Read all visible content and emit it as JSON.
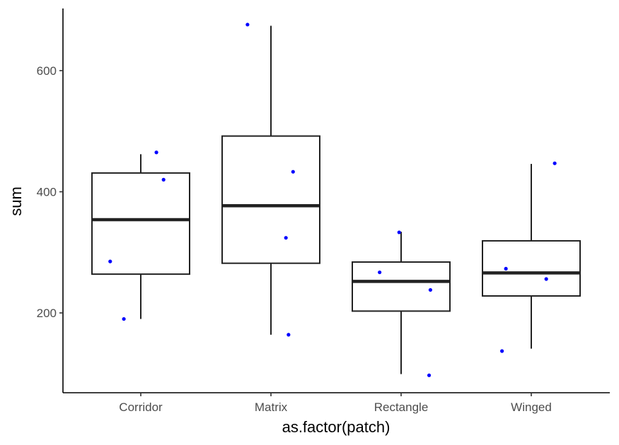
{
  "chart_data": {
    "type": "boxplot",
    "xlabel": "as.factor(patch)",
    "ylabel": "sum",
    "categories": [
      "Corridor",
      "Matrix",
      "Rectangle",
      "Winged"
    ],
    "ylim": [
      70,
      700
    ],
    "y_ticks": [
      200,
      400,
      600
    ],
    "grid": false,
    "boxes": [
      {
        "category": "Corridor",
        "whisker_low": 190,
        "q1": 264,
        "median": 354,
        "q3": 431,
        "whisker_high": 462
      },
      {
        "category": "Matrix",
        "whisker_low": 164,
        "q1": 282,
        "median": 377,
        "q3": 492,
        "whisker_high": 674
      },
      {
        "category": "Rectangle",
        "whisker_low": 99,
        "q1": 203,
        "median": 252,
        "q3": 284,
        "whisker_high": 334
      },
      {
        "category": "Winged",
        "whisker_low": 141,
        "q1": 228,
        "median": 266,
        "q3": 319,
        "whisker_high": 446
      }
    ],
    "points": [
      {
        "category": "Corridor",
        "y": 465,
        "jitter": 0.24
      },
      {
        "category": "Corridor",
        "y": 420,
        "jitter": 0.35
      },
      {
        "category": "Corridor",
        "y": 285,
        "jitter": -0.47
      },
      {
        "category": "Corridor",
        "y": 190,
        "jitter": -0.26
      },
      {
        "category": "Matrix",
        "y": 676,
        "jitter": -0.36
      },
      {
        "category": "Matrix",
        "y": 433,
        "jitter": 0.34
      },
      {
        "category": "Matrix",
        "y": 324,
        "jitter": 0.23
      },
      {
        "category": "Matrix",
        "y": 164,
        "jitter": 0.27
      },
      {
        "category": "Rectangle",
        "y": 333,
        "jitter": -0.03
      },
      {
        "category": "Rectangle",
        "y": 267,
        "jitter": -0.33
      },
      {
        "category": "Rectangle",
        "y": 238,
        "jitter": 0.45
      },
      {
        "category": "Rectangle",
        "y": 97,
        "jitter": 0.43
      },
      {
        "category": "Winged",
        "y": 447,
        "jitter": 0.36
      },
      {
        "category": "Winged",
        "y": 273,
        "jitter": -0.39
      },
      {
        "category": "Winged",
        "y": 256,
        "jitter": 0.23
      },
      {
        "category": "Winged",
        "y": 137,
        "jitter": -0.45
      }
    ],
    "colors": {
      "points": "#0000ff",
      "boxes": "#222222"
    }
  }
}
